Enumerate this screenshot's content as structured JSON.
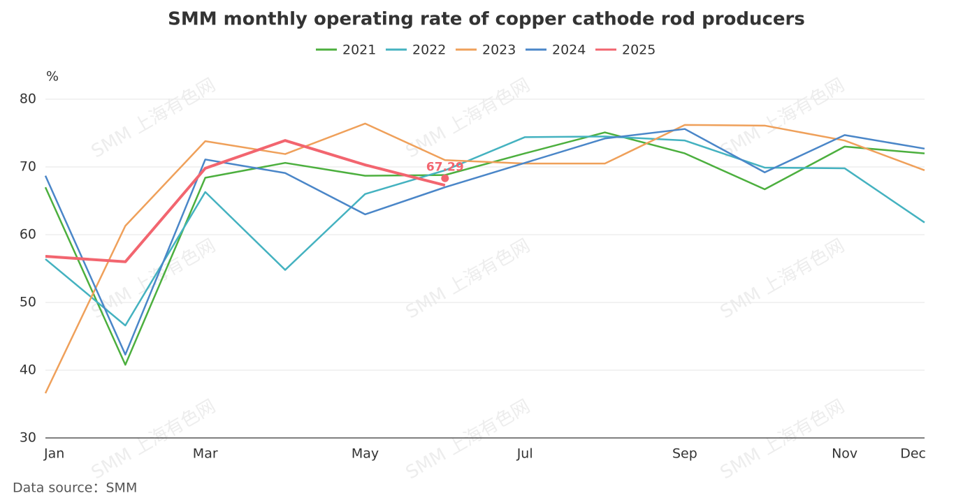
{
  "chart_data": {
    "type": "line",
    "title": "SMM monthly operating rate of copper cathode rod producers",
    "y_axis_label": "%",
    "source": "Data source：SMM",
    "watermark": "SMM 上海有色网",
    "categories": [
      "Jan",
      null,
      "Mar",
      null,
      "May",
      null,
      "Jul",
      null,
      "Sep",
      null,
      "Nov",
      "Dec"
    ],
    "series": [
      {
        "name": "2021",
        "color": "#4caf3e",
        "values": [
          67.0,
          40.8,
          68.4,
          70.6,
          68.7,
          68.8,
          72.0,
          75.1,
          72.0,
          66.7,
          73.0,
          72.0
        ]
      },
      {
        "name": "2022",
        "color": "#44b2c0",
        "values": [
          56.4,
          46.6,
          66.3,
          54.8,
          66.0,
          69.5,
          74.4,
          74.5,
          73.9,
          69.9,
          69.8,
          61.8
        ]
      },
      {
        "name": "2023",
        "color": "#efa05a",
        "values": [
          36.6,
          61.3,
          73.8,
          71.9,
          76.4,
          71.0,
          70.5,
          70.5,
          76.2,
          76.1,
          73.9,
          69.5
        ]
      },
      {
        "name": "2024",
        "color": "#4a86c8",
        "values": [
          68.7,
          42.3,
          71.1,
          69.1,
          63.0,
          67.0,
          70.6,
          74.2,
          75.6,
          69.2,
          74.7,
          72.7
        ]
      },
      {
        "name": "2025",
        "color": "#f2656f",
        "values": [
          56.8,
          56.0,
          69.8,
          73.9,
          70.3,
          67.29,
          null,
          null,
          null,
          null,
          null,
          null
        ]
      }
    ],
    "labeled_point": {
      "series": 4,
      "index": 5
    },
    "ylim": [
      30,
      80
    ],
    "yticks": [
      30,
      40,
      50,
      60,
      70,
      80
    ],
    "grid": true
  }
}
